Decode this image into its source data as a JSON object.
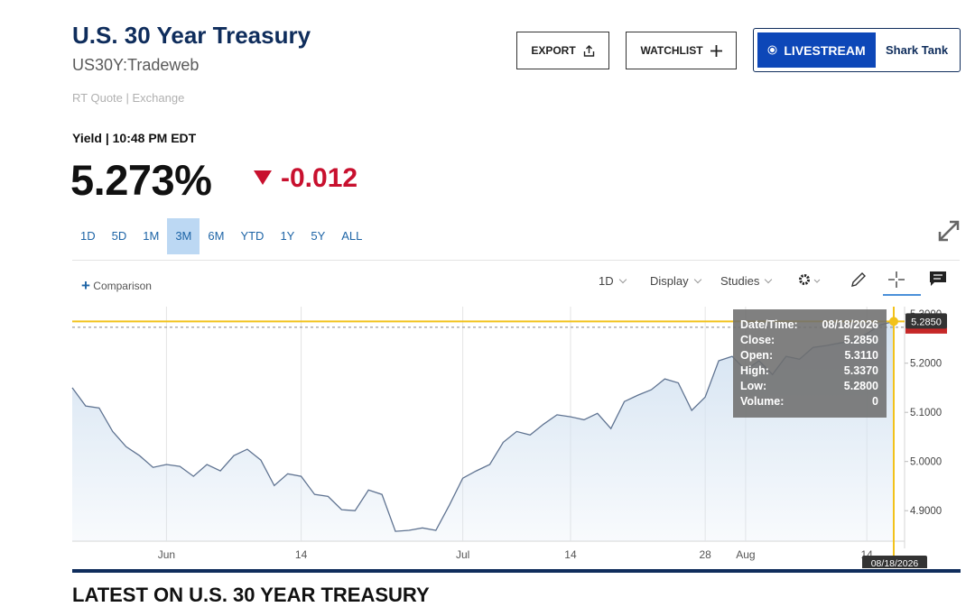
{
  "header": {
    "title": "U.S. 30 Year Treasury",
    "symbol": "US30Y:Tradeweb",
    "source": "RT Quote | Exchange"
  },
  "buttons": {
    "export": "EXPORT",
    "watchlist": "WATCHLIST",
    "livestream": "LIVESTREAM",
    "show": "Shark Tank"
  },
  "quote": {
    "label": "Yield | 10:48 PM EDT",
    "price": "5.273%",
    "change": "-0.012"
  },
  "ranges": [
    "1D",
    "5D",
    "1M",
    "3M",
    "6M",
    "YTD",
    "1Y",
    "5Y",
    "ALL"
  ],
  "selected_range": "3M",
  "toolbar": {
    "comparison": "Comparison",
    "interval": "1D",
    "display": "Display",
    "studies": "Studies"
  },
  "chart_data": {
    "type": "area",
    "categories": [
      null,
      null,
      null,
      null,
      null,
      null,
      null,
      "Jun",
      null,
      null,
      null,
      null,
      null,
      null,
      null,
      null,
      null,
      "14",
      null,
      null,
      null,
      null,
      null,
      null,
      null,
      null,
      null,
      null,
      null,
      "Jul",
      null,
      null,
      null,
      null,
      null,
      null,
      null,
      "14",
      null,
      null,
      null,
      null,
      null,
      null,
      null,
      null,
      null,
      "28",
      null,
      null,
      "Aug",
      null,
      null,
      null,
      null,
      null,
      null,
      null,
      null,
      "14",
      null,
      null
    ],
    "values": [
      5.15,
      5.113,
      5.109,
      5.061,
      5.03,
      5.012,
      4.988,
      4.994,
      4.99,
      4.97,
      4.994,
      4.981,
      5.012,
      5.025,
      5.003,
      4.951,
      4.975,
      4.97,
      4.933,
      4.929,
      4.902,
      4.9,
      4.942,
      4.933,
      4.858,
      4.86,
      4.865,
      4.86,
      4.911,
      4.966,
      4.981,
      4.994,
      5.039,
      5.061,
      5.054,
      5.076,
      5.095,
      5.091,
      5.085,
      5.098,
      5.067,
      5.122,
      5.135,
      5.146,
      5.168,
      5.16,
      5.104,
      5.131,
      5.205,
      5.214,
      5.186,
      5.205,
      5.177,
      5.214,
      5.208,
      5.232,
      5.236,
      5.241,
      5.245,
      5.26,
      5.278,
      5.285
    ],
    "color": "#5f7391",
    "fill_color": "#d3e2f1",
    "ylim": [
      4.838,
      5.315
    ],
    "yticks": [
      {
        "value": 4.9,
        "label": "4.9000"
      },
      {
        "value": 5.0,
        "label": "5.0000"
      },
      {
        "value": 5.1,
        "label": "5.1000"
      },
      {
        "value": 5.2,
        "label": "5.2000"
      },
      {
        "value": 5.3,
        "label": "5.3000"
      }
    ],
    "grid": true,
    "last_price": 5.273,
    "crosshair": {
      "value": 5.285,
      "label": "5.2850",
      "date": "08/18/2026",
      "color": "#f2c21b"
    },
    "tooltip": [
      {
        "label": "Date/Time:",
        "value": "08/18/2026"
      },
      {
        "label": "Close:",
        "value": "5.2850"
      },
      {
        "label": "Open:",
        "value": "5.3110"
      },
      {
        "label": "High:",
        "value": "5.3370"
      },
      {
        "label": "Low:",
        "value": "5.2800"
      },
      {
        "label": "Volume:",
        "value": "0"
      }
    ]
  },
  "section_heading": "LATEST ON U.S. 30 YEAR TREASURY"
}
